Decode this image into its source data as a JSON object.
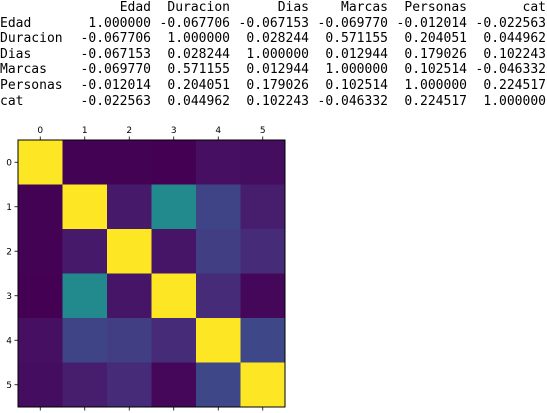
{
  "chart_data": {
    "type": "heatmap",
    "labels": [
      "Edad",
      "Duracion",
      "Dias",
      "Marcas",
      "Personas",
      "cat"
    ],
    "tick_labels": [
      "0",
      "1",
      "2",
      "3",
      "4",
      "5"
    ],
    "matrix": [
      [
        "1.000000",
        "-0.067706",
        "-0.067153",
        "-0.069770",
        "-0.012014",
        "-0.022563"
      ],
      [
        "-0.067706",
        "1.000000",
        "0.028244",
        "0.571155",
        "0.204051",
        "0.044962"
      ],
      [
        "-0.067153",
        "0.028244",
        "1.000000",
        "0.012944",
        "0.179026",
        "0.102243"
      ],
      [
        "-0.069770",
        "0.571155",
        "0.012944",
        "1.000000",
        "0.102514",
        "-0.046332"
      ],
      [
        "-0.012014",
        "0.204051",
        "0.179026",
        "0.102514",
        "1.000000",
        "0.224517"
      ],
      [
        "-0.022563",
        "0.044962",
        "0.102243",
        "-0.046332",
        "0.224517",
        "1.000000"
      ]
    ],
    "colormap": "viridis",
    "color_range": [
      -0.06977,
      1.0
    ],
    "grid": false
  }
}
